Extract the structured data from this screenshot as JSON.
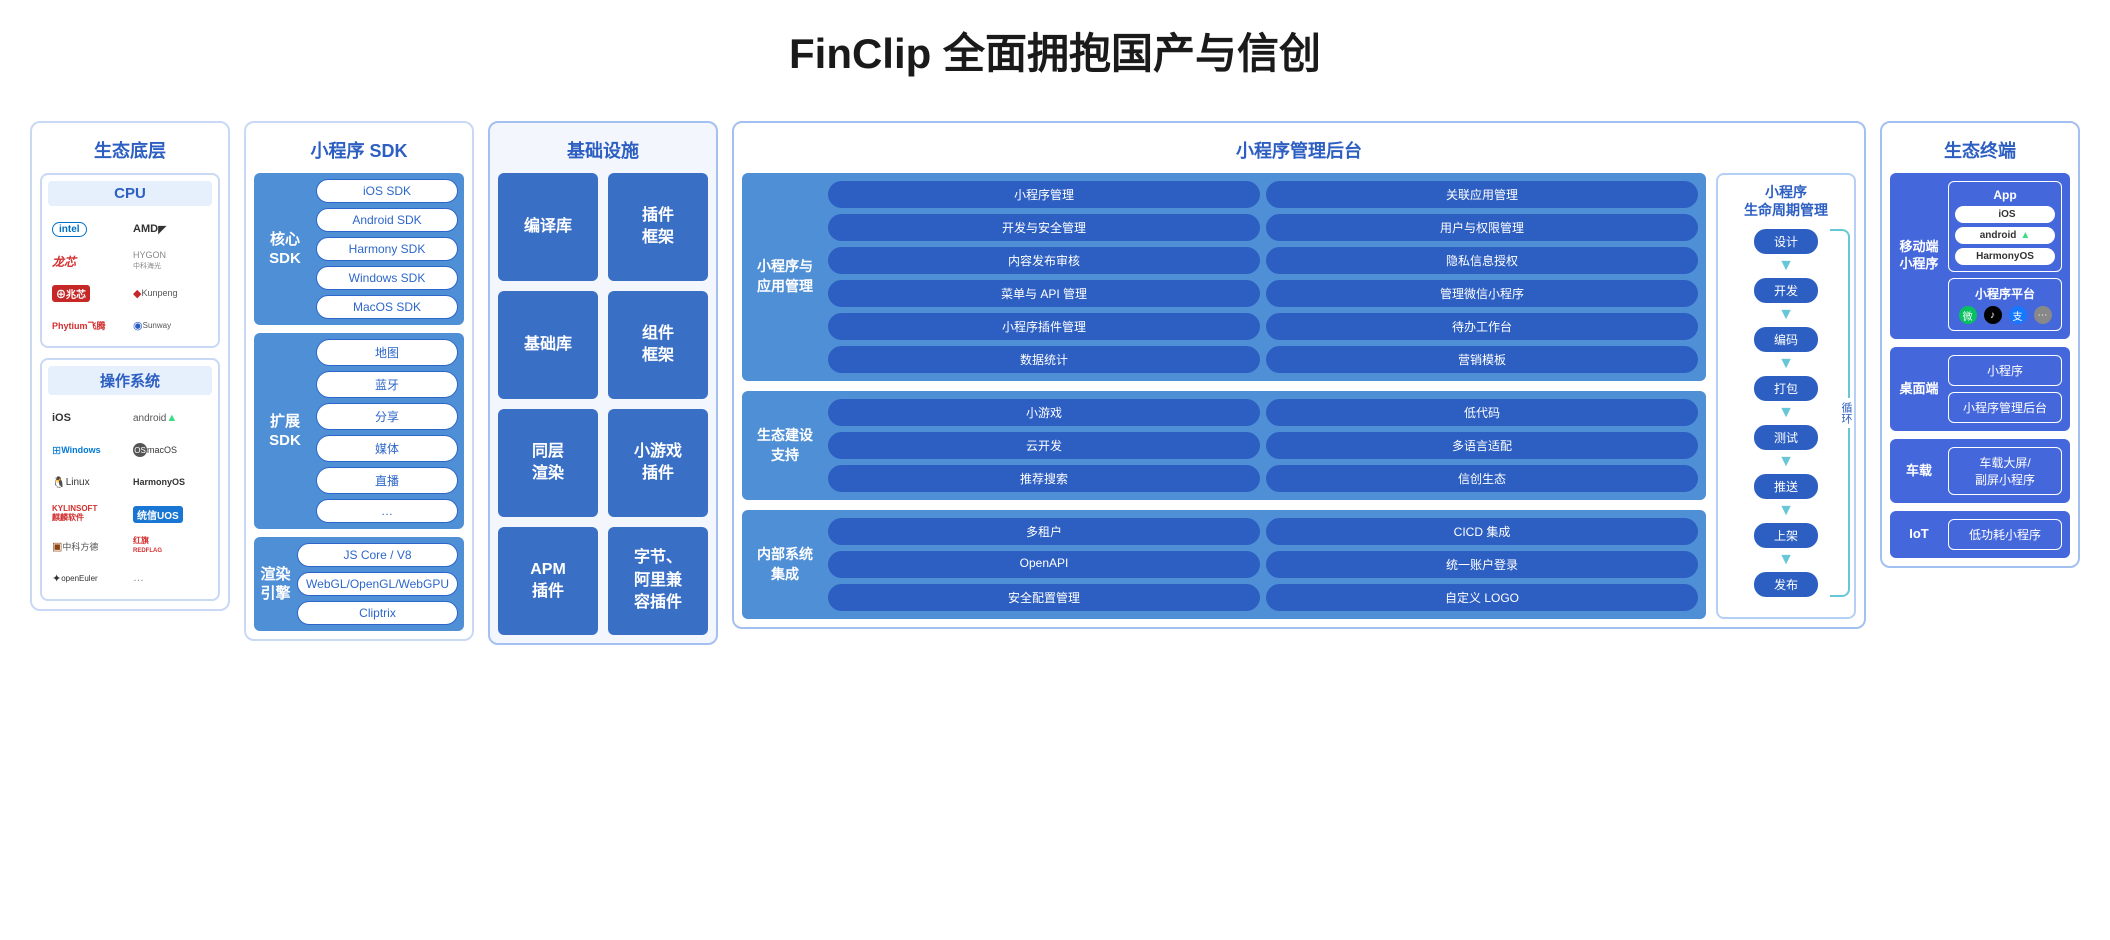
{
  "title": "FinClip 全面拥抱国产与信创",
  "colors": {
    "border_light": "#c8d8f5",
    "border_blue": "#a4c0f0",
    "header_text": "#2d5fc2",
    "panel_mid_blue": "#4f8fd6",
    "pill_dark_blue": "#2d5fc2",
    "infra_blue": "#3a6fc6",
    "term_blue": "#4567dc",
    "lifecycle_arrow": "#67c7d6",
    "sub_header_bg": "#e6effc"
  },
  "col1": {
    "header": "生态底层",
    "cpu": {
      "title": "CPU",
      "items": [
        "intel",
        "AMD",
        "龙芯",
        "HYGON 中科海光",
        "兆芯",
        "Kunpeng",
        "Phytium飞腾",
        "Sunway 申威"
      ]
    },
    "os": {
      "title": "操作系统",
      "items": [
        "iOS",
        "android",
        "Windows",
        "macOS",
        "Linux",
        "HarmonyOS",
        "KYLINSOFT 麒麟软件",
        "统信UOS",
        "中科方德",
        "红旗 REDFLAG",
        "openEuler",
        "…"
      ]
    }
  },
  "col2": {
    "header": "小程序 SDK",
    "sections": [
      {
        "label": "核心\nSDK",
        "items": [
          "iOS SDK",
          "Android SDK",
          "Harmony SDK",
          "Windows SDK",
          "MacOS SDK"
        ]
      },
      {
        "label": "扩展\nSDK",
        "items": [
          "地图",
          "蓝牙",
          "分享",
          "媒体",
          "直播",
          "…"
        ]
      },
      {
        "label": "渲染\n引擎",
        "items": [
          "JS Core / V8",
          "WebGL/OpenGL/WebGPU",
          "Cliptrix"
        ]
      }
    ]
  },
  "col3": {
    "header": "基础设施",
    "boxes": [
      "编译库",
      "插件\n框架",
      "基础库",
      "组件\n框架",
      "同层\n渲染",
      "小游戏\n插件",
      "APM\n插件",
      "字节、\n阿里兼\n容插件"
    ]
  },
  "col4": {
    "header": "小程序管理后台",
    "panels": [
      {
        "label": "小程序与\n应用管理",
        "items": [
          "小程序管理",
          "关联应用管理",
          "开发与安全管理",
          "用户与权限管理",
          "内容发布审核",
          "隐私信息授权",
          "菜单与 API 管理",
          "管理微信小程序",
          "小程序插件管理",
          "待办工作台",
          "数据统计",
          "营销模板"
        ]
      },
      {
        "label": "生态建设\n支持",
        "items": [
          "小游戏",
          "低代码",
          "云开发",
          "多语言适配",
          "推荐搜索",
          "信创生态"
        ]
      },
      {
        "label": "内部系统\n集成",
        "items": [
          "多租户",
          "CICD 集成",
          "OpenAPI",
          "统一账户登录",
          "安全配置管理",
          "自定义 LOGO"
        ]
      }
    ],
    "lifecycle": {
      "title": "小程序\n生命周期管理",
      "steps": [
        "设计",
        "开发",
        "编码",
        "打包",
        "测试",
        "推送",
        "上架",
        "发布"
      ],
      "loop_label": "循环"
    }
  },
  "col5": {
    "header": "生态终端",
    "panels": [
      {
        "label": "移动端\n小程序",
        "app": {
          "title": "App",
          "os": [
            "iOS",
            "android",
            "HarmonyOS"
          ]
        },
        "platform": {
          "title": "小程序平台",
          "icons": [
            "wechat",
            "tiktok",
            "alipay",
            "more"
          ]
        }
      },
      {
        "label": "桌面端",
        "items": [
          "小程序",
          "小程序管理后台"
        ]
      },
      {
        "label": "车载",
        "items": [
          "车载大屏/\n副屏小程序"
        ]
      },
      {
        "label": "IoT",
        "items": [
          "低功耗小程序"
        ]
      }
    ]
  }
}
